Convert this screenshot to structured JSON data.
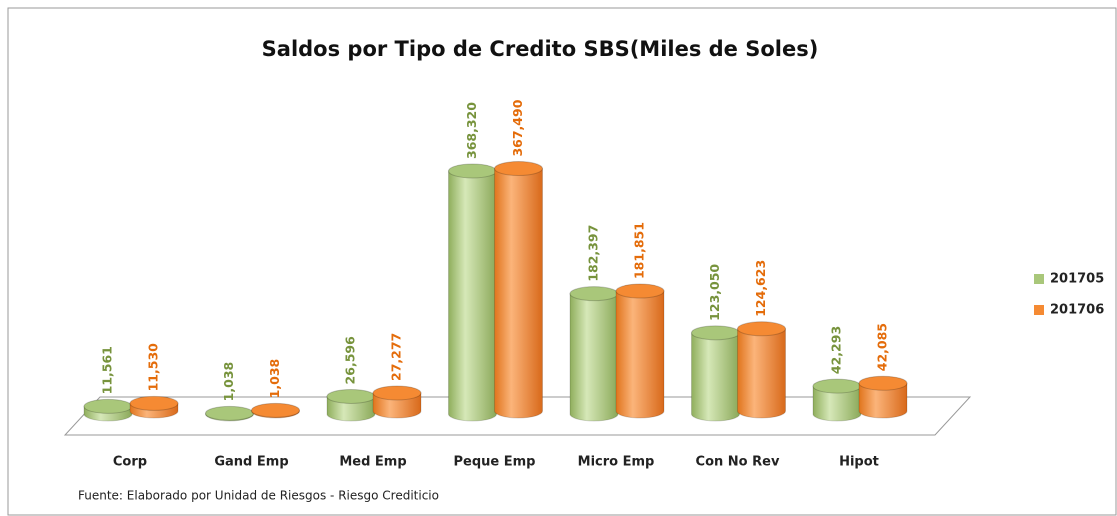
{
  "chart_data": {
    "type": "bar3d",
    "title": "Saldos por Tipo de Credito SBS(Miles de Soles)",
    "categories": [
      "Corp",
      "Gand Emp",
      "Med Emp",
      "Peque Emp",
      "Micro Emp",
      "Con No Rev",
      "Hipot"
    ],
    "series": [
      {
        "name": "201705",
        "color": "#a9c77a",
        "values": [
          11561,
          1038,
          26596,
          368320,
          182397,
          123050,
          42293
        ],
        "value_labels": [
          "11,561",
          "1,038",
          "26,596",
          "368,320",
          "182,397",
          "123,050",
          "42,293"
        ],
        "label_color": "#77933c"
      },
      {
        "name": "201706",
        "color": "#f58a33",
        "values": [
          11530,
          1038,
          27277,
          367490,
          181851,
          124623,
          42085
        ],
        "value_labels": [
          "11,530",
          "1,038",
          "27,277",
          "367,490",
          "181,851",
          "124,623",
          "42,085"
        ],
        "label_color": "#e46c0a"
      }
    ],
    "legend": "right",
    "source": "Fuente:  Elaborado por Unidad de Riesgos - Riesgo Crediticio"
  }
}
